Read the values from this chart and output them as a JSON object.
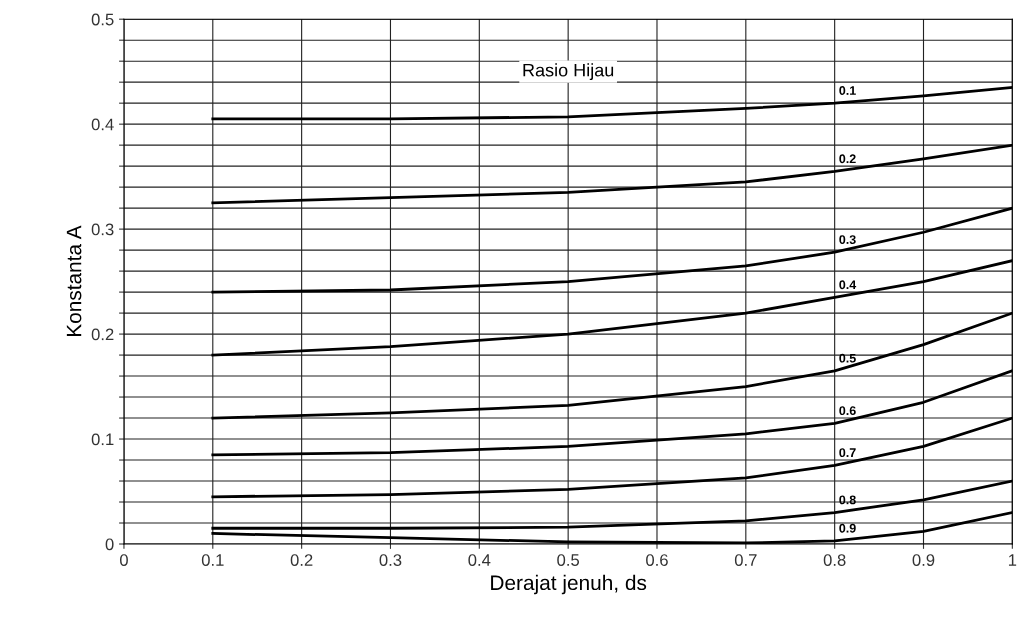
{
  "chart_data": {
    "type": "line",
    "xlabel": "Derajat jenuh, ds",
    "ylabel": "Konstanta A",
    "legend_title": "Rasio Hijau",
    "x": [
      0.1,
      0.3,
      0.5,
      0.7,
      0.8,
      0.9,
      1
    ],
    "series": [
      {
        "name": "0.1",
        "color": "#000000",
        "values": [
          0.405,
          0.405,
          0.407,
          0.415,
          0.42,
          0.427,
          0.435
        ]
      },
      {
        "name": "0.2",
        "color": "#000000",
        "values": [
          0.325,
          0.33,
          0.335,
          0.345,
          0.355,
          0.367,
          0.38
        ]
      },
      {
        "name": "0.3",
        "color": "#000000",
        "values": [
          0.24,
          0.242,
          0.25,
          0.265,
          0.278,
          0.297,
          0.32
        ]
      },
      {
        "name": "0.4",
        "color": "#000000",
        "values": [
          0.18,
          0.188,
          0.2,
          0.22,
          0.235,
          0.25,
          0.27
        ]
      },
      {
        "name": "0.5",
        "color": "#000000",
        "values": [
          0.12,
          0.125,
          0.132,
          0.15,
          0.165,
          0.19,
          0.22
        ]
      },
      {
        "name": "0.6",
        "color": "#000000",
        "values": [
          0.085,
          0.087,
          0.093,
          0.105,
          0.115,
          0.135,
          0.165
        ]
      },
      {
        "name": "0.7",
        "color": "#000000",
        "values": [
          0.045,
          0.047,
          0.052,
          0.063,
          0.075,
          0.093,
          0.12
        ]
      },
      {
        "name": "0.8",
        "color": "#000000",
        "values": [
          0.015,
          0.015,
          0.016,
          0.022,
          0.03,
          0.042,
          0.06
        ]
      },
      {
        "name": "0.9",
        "color": "#000000",
        "values": [
          0.01,
          0.006,
          0.002,
          0.001,
          0.003,
          0.012,
          0.03
        ]
      }
    ],
    "xlim": [
      0,
      1
    ],
    "ylim": [
      0,
      0.5
    ],
    "xticks": [
      0,
      0.1,
      0.2,
      0.3,
      0.4,
      0.5,
      0.6,
      0.7,
      0.8,
      0.9,
      1
    ],
    "yticks": [
      0,
      {
        "value": 0.02,
        "label": null
      },
      {
        "value": 0.04,
        "label": null
      },
      {
        "value": 0.06,
        "label": null
      },
      {
        "value": 0.08,
        "label": null
      },
      0.1,
      {
        "value": 0.12,
        "label": null
      },
      {
        "value": 0.14,
        "label": null
      },
      {
        "value": 0.16,
        "label": null
      },
      {
        "value": 0.18,
        "label": null
      },
      0.2,
      {
        "value": 0.22,
        "label": null
      },
      {
        "value": 0.24,
        "label": null
      },
      {
        "value": 0.26,
        "label": null
      },
      {
        "value": 0.28,
        "label": null
      },
      0.3,
      {
        "value": 0.32,
        "label": null
      },
      {
        "value": 0.34,
        "label": null
      },
      {
        "value": 0.36,
        "label": null
      },
      {
        "value": 0.38,
        "label": null
      },
      0.4,
      {
        "value": 0.42,
        "label": null
      },
      {
        "value": 0.44,
        "label": null
      },
      {
        "value": 0.46,
        "label": null
      },
      {
        "value": 0.48,
        "label": null
      },
      0.5
    ],
    "grid": true,
    "marker": "none",
    "line_style": "solid"
  }
}
